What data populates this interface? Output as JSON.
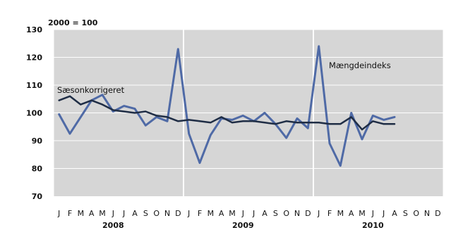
{
  "chart_data": {
    "type": "line",
    "unit_note": "2000 = 100",
    "ylim": [
      70,
      130
    ],
    "yticks": [
      70,
      80,
      90,
      100,
      110,
      120,
      130
    ],
    "grid": true,
    "month_labels": [
      "J",
      "F",
      "M",
      "A",
      "M",
      "J",
      "J",
      "A",
      "S",
      "O",
      "N",
      "D",
      "J",
      "F",
      "M",
      "A",
      "M",
      "J",
      "J",
      "A",
      "S",
      "O",
      "N",
      "D",
      "J",
      "F",
      "M",
      "A",
      "M",
      "J",
      "J",
      "A",
      "S",
      "O",
      "N",
      "D"
    ],
    "years": [
      {
        "label": "2008",
        "start_month": 0
      },
      {
        "label": "2009",
        "start_month": 12
      },
      {
        "label": "2010",
        "start_month": 24
      }
    ],
    "series": [
      {
        "name": "Mængdeindeks",
        "color": "#4f6aa6",
        "values": [
          99.5,
          92.5,
          98.5,
          104.5,
          106.5,
          100.5,
          102.5,
          101.5,
          95.5,
          98.5,
          97.0,
          123.0,
          92.5,
          82.0,
          92.0,
          98.0,
          97.5,
          99.0,
          97.0,
          100.0,
          96.0,
          91.0,
          98.0,
          94.5,
          124.0,
          89.0,
          81.0,
          100.0,
          90.5,
          99.0,
          97.5,
          98.5
        ]
      },
      {
        "name": "Sæsonkorrigeret",
        "color": "#1f2d45",
        "values": [
          104.5,
          106.0,
          103.0,
          104.5,
          103.0,
          101.0,
          100.5,
          100.0,
          100.5,
          99.0,
          98.5,
          97.0,
          97.5,
          97.0,
          96.5,
          98.5,
          96.5,
          97.0,
          97.0,
          96.5,
          96.0,
          97.0,
          96.5,
          96.5,
          96.5,
          96.0,
          96.0,
          98.5,
          94.0,
          97.0,
          96.0,
          96.0
        ]
      }
    ]
  }
}
